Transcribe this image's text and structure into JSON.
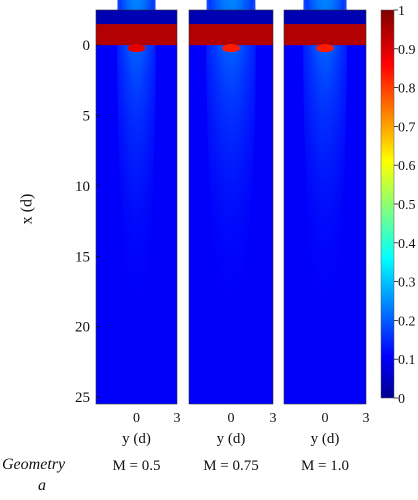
{
  "chart_data": {
    "type": "heatmap",
    "colormap": "jet",
    "value_range": [
      0,
      1
    ],
    "colorbar_ticks": [
      "0",
      "0.1",
      "0.2",
      "0.3",
      "0.4",
      "0.5",
      "0.6",
      "0.7",
      "0.8",
      "0.9",
      "1"
    ],
    "ylabel": "x (d)",
    "y_tick_labels": [
      "0",
      "5",
      "10",
      "15",
      "20",
      "25"
    ],
    "y_tick_values": [
      0,
      5,
      10,
      15,
      20,
      25
    ],
    "x_range": [
      -3,
      3
    ],
    "y_range": [
      -2.5,
      25.5
    ],
    "panel_xlabel": "y (d)",
    "panel_x_tick_labels": [
      "0",
      "3"
    ],
    "panel_x_tick_values": [
      0,
      3
    ],
    "row_label_line1": "Geometry",
    "row_label_line2": "a",
    "panels": [
      {
        "label": "M = 0.5",
        "spread": 0.85,
        "peak_intensity": 0.9
      },
      {
        "label": "M = 0.75",
        "spread": 1.05,
        "peak_intensity": 0.85
      },
      {
        "label": "M = 1.0",
        "spread": 0.95,
        "peak_intensity": 0.85
      }
    ],
    "regions": {
      "top_band_value": 0.05,
      "red_block_value": 0.95,
      "red_block_x_range": [
        -1.5,
        0
      ],
      "background_value": 0.12
    }
  }
}
